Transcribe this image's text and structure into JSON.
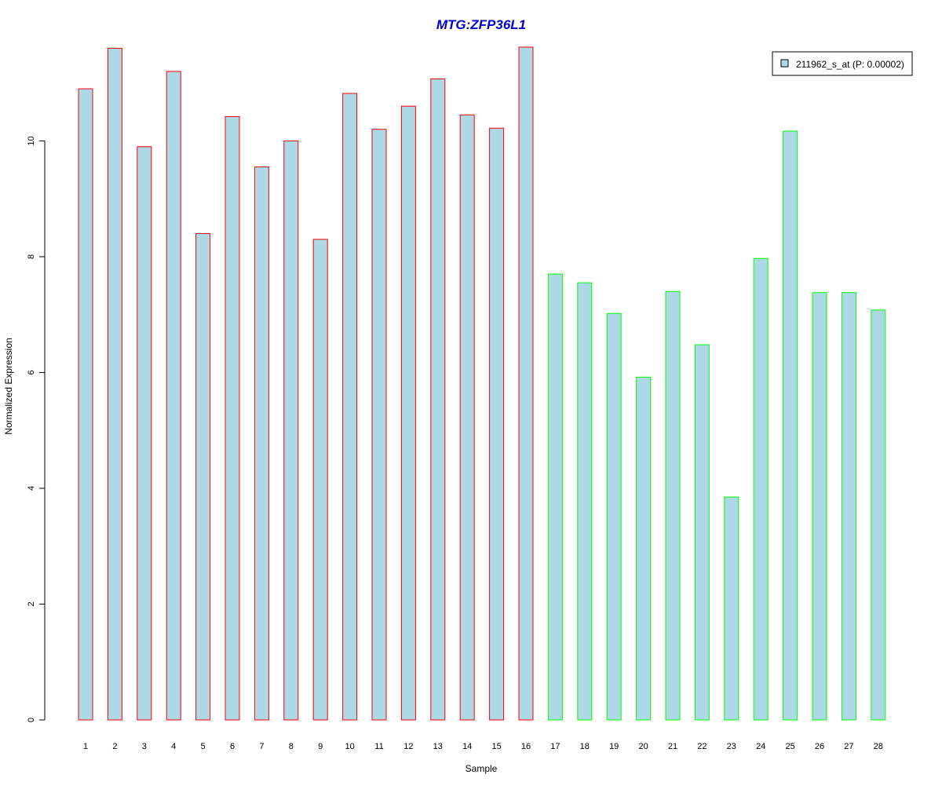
{
  "chart_data": {
    "type": "bar",
    "title": "MTG:ZFP36L1",
    "xlabel": "Sample",
    "ylabel": "Normalized Expression",
    "categories": [
      "1",
      "2",
      "3",
      "4",
      "5",
      "6",
      "7",
      "8",
      "9",
      "10",
      "11",
      "12",
      "13",
      "14",
      "15",
      "16",
      "17",
      "18",
      "19",
      "20",
      "21",
      "22",
      "23",
      "24",
      "25",
      "26",
      "27",
      "28"
    ],
    "series": [
      {
        "name": "211962_s_at (P: 0.00002)",
        "values": [
          10.9,
          11.6,
          9.9,
          11.2,
          8.4,
          10.42,
          9.55,
          10.0,
          8.3,
          10.82,
          10.2,
          10.6,
          11.07,
          10.45,
          10.22,
          11.62,
          7.7,
          7.55,
          7.02,
          5.92,
          7.4,
          6.48,
          3.85,
          7.97,
          10.17,
          7.38,
          7.38,
          7.08
        ]
      }
    ],
    "yticks": [
      0,
      2,
      4,
      6,
      8,
      10
    ],
    "ylim": [
      0,
      11.62
    ],
    "grid": false,
    "legend_position": "top-right",
    "colors": {
      "bar_fill": "#add8e6",
      "group1_border": "#ff0000",
      "group2_border": "#00ff00",
      "title": "#0000cc",
      "axis": "#000000"
    }
  }
}
